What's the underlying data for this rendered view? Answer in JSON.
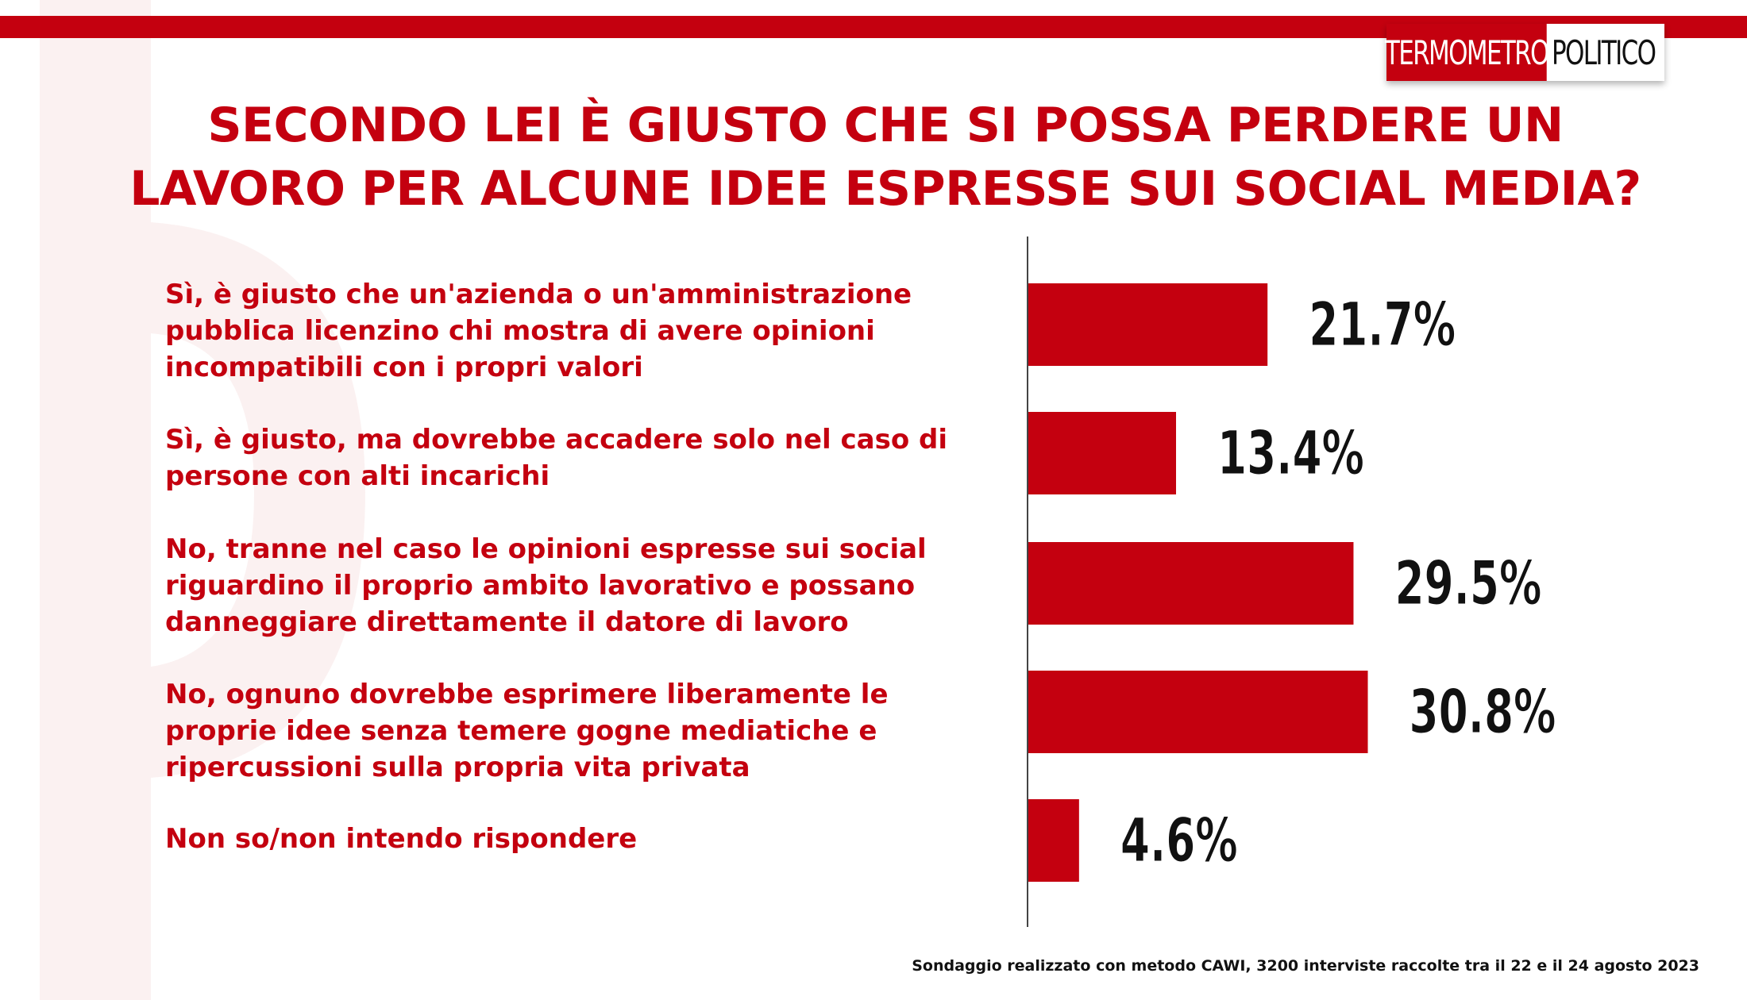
{
  "brand": {
    "logo_part1": "TERMOMETRO",
    "logo_part2": "POLITICO",
    "accent_color": "#c4000f"
  },
  "chart_data": {
    "type": "bar",
    "orientation": "horizontal",
    "title": "SECONDO LEI È GIUSTO CHE SI POSSA PERDERE UN LAVORO PER ALCUNE IDEE ESPRESSE SUI SOCIAL MEDIA?",
    "title_lines": [
      "SECONDO LEI È GIUSTO CHE SI POSSA PERDERE UN",
      "LAVORO PER ALCUNE IDEE ESPRESSE SUI SOCIAL MEDIA?"
    ],
    "categories": [
      "Sì, è giusto che un'azienda o un'amministrazione pubblica licenzino chi mostra di avere opinioni incompatibili con i propri valori",
      "Sì, è giusto, ma dovrebbe accadere solo nel caso di persone con alti incarichi",
      "No, tranne nel caso le opinioni espresse sui social riguardino il proprio ambito lavorativo e possano danneggiare direttamente il datore di lavoro",
      "No, ognuno dovrebbe esprimere liberamente le proprie idee senza temere gogne mediatiche e ripercussioni sulla propria vita privata",
      "Non so/non intendo rispondere"
    ],
    "category_lines": [
      [
        "Sì, è giusto che un'azienda o un'amministrazione",
        "pubblica licenzino chi mostra di avere opinioni",
        "incompatibili con i propri valori"
      ],
      [
        "Sì, è giusto, ma dovrebbe accadere solo nel caso di",
        "persone con alti incarichi"
      ],
      [
        "No, tranne nel caso le opinioni espresse sui social",
        "riguardino il proprio ambito lavorativo e possano",
        "danneggiare direttamente il datore di lavoro"
      ],
      [
        "No, ognuno dovrebbe esprimere liberamente le",
        "proprie idee senza temere gogne mediatiche e",
        "ripercussioni sulla propria vita privata"
      ],
      [
        "Non so/non intendo rispondere"
      ]
    ],
    "values": [
      21.7,
      13.4,
      29.5,
      30.8,
      4.6
    ],
    "value_labels": [
      "21.7%",
      "13.4%",
      "29.5%",
      "30.8%",
      "4.6%"
    ],
    "unit": "%",
    "xlim": [
      0,
      50
    ],
    "bar_color": "#c4000f",
    "grid": false,
    "legend": "none"
  },
  "footer": {
    "note": "Sondaggio realizzato con metodo CAWI, 3200 interviste raccolte tra il 22 e il 24 agosto 2023"
  }
}
